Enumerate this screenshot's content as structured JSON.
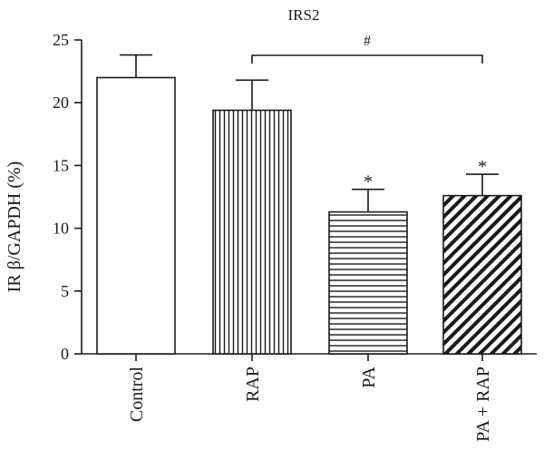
{
  "chart_data": {
    "type": "bar",
    "title": "IRS2",
    "xlabel": "",
    "ylabel": "IR β/GAPDH (%)",
    "ylim": [
      0,
      25
    ],
    "yticks": [
      0,
      5,
      10,
      15,
      20,
      25
    ],
    "categories": [
      "Control",
      "RAP",
      "PA",
      "PA + RAP"
    ],
    "values": [
      22.0,
      19.4,
      11.3,
      12.6
    ],
    "errors": [
      1.8,
      2.4,
      1.8,
      1.7
    ],
    "patterns": [
      "none",
      "vertical",
      "horizontal",
      "diagonal"
    ],
    "significance": [
      "",
      "",
      "*",
      "*"
    ],
    "comparison": {
      "from": "RAP",
      "to": "PA + RAP",
      "label": "#"
    },
    "grid": false
  }
}
